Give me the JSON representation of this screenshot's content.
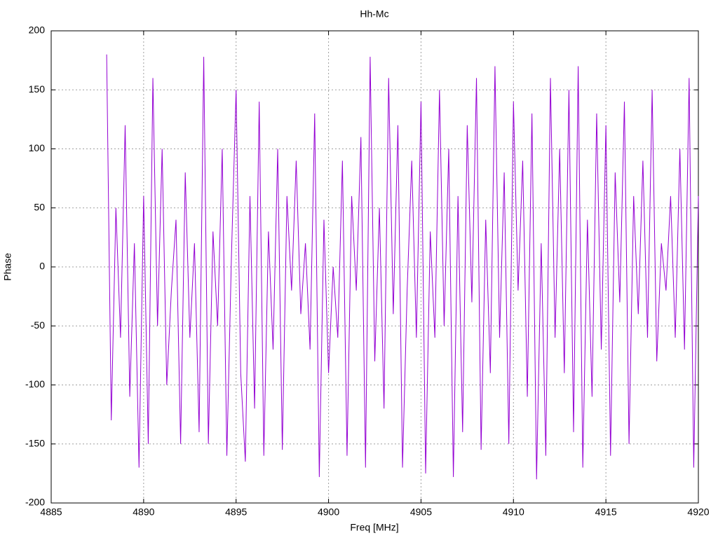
{
  "chart_data": {
    "type": "line",
    "title": "Hh-Mc",
    "xlabel": "Freq [MHz]",
    "ylabel": "Phase",
    "x": [
      4888,
      4888.25,
      4888.5,
      4888.75,
      4889,
      4889.25,
      4889.5,
      4889.75,
      4890,
      4890.25,
      4890.5,
      4890.75,
      4891,
      4891.25,
      4891.5,
      4891.75,
      4892,
      4892.25,
      4892.5,
      4892.75,
      4893,
      4893.25,
      4893.5,
      4893.75,
      4894,
      4894.25,
      4894.5,
      4894.75,
      4895,
      4895.25,
      4895.5,
      4895.75,
      4896,
      4896.25,
      4896.5,
      4896.75,
      4897,
      4897.25,
      4897.5,
      4897.75,
      4898,
      4898.25,
      4898.5,
      4898.75,
      4899,
      4899.25,
      4899.5,
      4899.75,
      4900,
      4900.25,
      4900.5,
      4900.75,
      4901,
      4901.25,
      4901.5,
      4901.75,
      4902,
      4902.25,
      4902.5,
      4902.75,
      4903,
      4903.25,
      4903.5,
      4903.75,
      4904,
      4904.25,
      4904.5,
      4904.75,
      4905,
      4905.25,
      4905.5,
      4905.75,
      4906,
      4906.25,
      4906.5,
      4906.75,
      4907,
      4907.25,
      4907.5,
      4907.75,
      4908,
      4908.25,
      4908.5,
      4908.75,
      4909,
      4909.25,
      4909.5,
      4909.75,
      4910,
      4910.25,
      4910.5,
      4910.75,
      4911,
      4911.25,
      4911.5,
      4911.75,
      4912,
      4912.25,
      4912.5,
      4912.75,
      4913,
      4913.25,
      4913.5,
      4913.75,
      4914,
      4914.25,
      4914.5,
      4914.75,
      4915,
      4915.25,
      4915.5,
      4915.75,
      4916,
      4916.25,
      4916.5,
      4916.75,
      4917,
      4917.25,
      4917.5,
      4917.75,
      4918,
      4918.25,
      4918.5,
      4918.75,
      4919,
      4919.25,
      4919.5,
      4919.75,
      4920
    ],
    "series": [
      {
        "color": "#9400d3",
        "values": [
          180,
          -130,
          50,
          -60,
          120,
          -110,
          20,
          -170,
          60,
          -150,
          160,
          -50,
          100,
          -100,
          -20,
          40,
          -150,
          80,
          -60,
          20,
          -140,
          178,
          -150,
          30,
          -50,
          100,
          -160,
          10,
          150,
          -90,
          -165,
          60,
          -120,
          140,
          -160,
          30,
          -70,
          100,
          -155,
          60,
          -20,
          90,
          -40,
          20,
          -70,
          130,
          -178,
          40,
          -90,
          0,
          -60,
          90,
          -160,
          60,
          -20,
          110,
          -170,
          178,
          -80,
          50,
          -120,
          160,
          -40,
          120,
          -170,
          -20,
          90,
          -60,
          140,
          -175,
          30,
          -60,
          150,
          -50,
          100,
          -178,
          60,
          -140,
          120,
          -30,
          160,
          -155,
          40,
          -90,
          170,
          -60,
          80,
          -150,
          140,
          -20,
          90,
          -110,
          130,
          -180,
          20,
          -160,
          160,
          -60,
          100,
          -90,
          150,
          -140,
          170,
          -170,
          40,
          -110,
          130,
          -70,
          120,
          -160,
          80,
          -30,
          140,
          -150,
          60,
          -40,
          90,
          -60,
          150,
          -80,
          20,
          -20,
          60,
          -60,
          100,
          -70,
          160,
          -170,
          60
        ]
      }
    ],
    "xlim": [
      4885,
      4920
    ],
    "xticks": [
      4885,
      4890,
      4895,
      4900,
      4905,
      4910,
      4915,
      4920
    ],
    "ylim": [
      -200,
      200
    ],
    "yticks": [
      -200,
      -150,
      -100,
      -50,
      0,
      50,
      100,
      150,
      200
    ],
    "grid": true
  }
}
